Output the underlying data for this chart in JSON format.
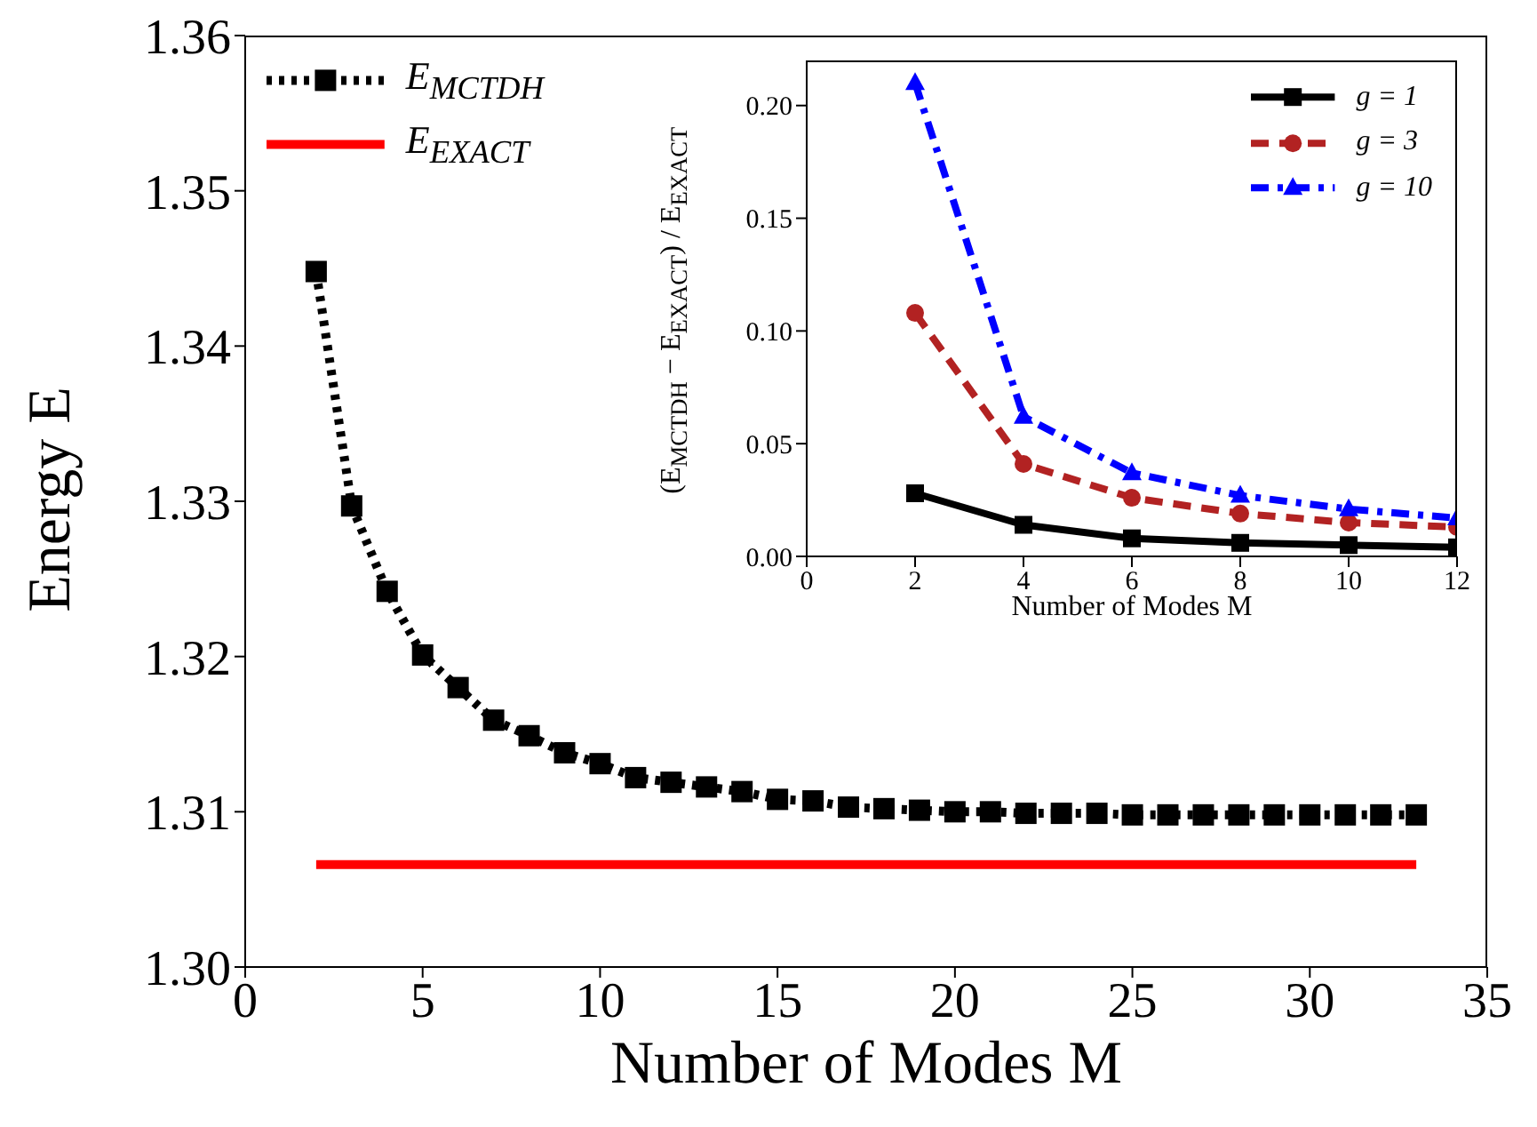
{
  "chart_data": [
    {
      "type": "line",
      "xlabel": "Number of Modes M",
      "ylabel": "Energy E",
      "xlim": [
        0,
        35
      ],
      "xticks": [
        0,
        5,
        10,
        15,
        20,
        25,
        30,
        35
      ],
      "ylim": [
        1.3,
        1.36
      ],
      "yticks": [
        {
          "value": 1.3,
          "label": "1.30"
        },
        {
          "value": 1.31,
          "label": "1.31"
        },
        {
          "value": 1.32,
          "label": "1.32"
        },
        {
          "value": 1.33,
          "label": "1.33"
        },
        {
          "value": 1.34,
          "label": "1.34"
        },
        {
          "value": 1.35,
          "label": "1.35"
        },
        {
          "value": 1.36,
          "label": "1.36"
        }
      ],
      "legend": "top left",
      "series": [
        {
          "name": "E$_{MCTDH}$",
          "color": "#000000",
          "marker": "square",
          "line_style": "dotted",
          "x": [
            2,
            3,
            4,
            5,
            6,
            7,
            8,
            9,
            10,
            11,
            12,
            13,
            14,
            15,
            16,
            17,
            18,
            19,
            20,
            21,
            22,
            23,
            24,
            25,
            26,
            27,
            28,
            29,
            30,
            31,
            32,
            33
          ],
          "values": [
            1.3448,
            1.3297,
            1.3242,
            1.3201,
            1.318,
            1.3159,
            1.3149,
            1.3138,
            1.3131,
            1.3122,
            1.3119,
            1.3116,
            1.3113,
            1.3108,
            1.3107,
            1.3103,
            1.3102,
            1.3101,
            1.31,
            1.31,
            1.3099,
            1.3099,
            1.3099,
            1.3098,
            1.3098,
            1.3098,
            1.3098,
            1.3098,
            1.3098,
            1.3098,
            1.3098,
            1.3098
          ]
        },
        {
          "name": "E$_{EXACT}$",
          "color": "#ff0000",
          "marker": "none",
          "line_style": "solid",
          "x": [
            2,
            33
          ],
          "values": [
            1.3066,
            1.3066
          ]
        }
      ]
    },
    {
      "type": "line",
      "xlabel": "Number of Modes M",
      "ylabel": "(E$_{MCTDH}$ − E$_{EXACT}$) / E$_{EXACT}$",
      "xlim": [
        0,
        12
      ],
      "xticks": [
        0,
        2,
        4,
        6,
        8,
        10,
        12
      ],
      "ylim": [
        0,
        0.22
      ],
      "yticks": [
        {
          "value": 0,
          "label": "0.00"
        },
        {
          "value": 0.05,
          "label": "0.05"
        },
        {
          "value": 0.1,
          "label": "0.10"
        },
        {
          "value": 0.15,
          "label": "0.15"
        },
        {
          "value": 0.2,
          "label": "0.20"
        }
      ],
      "legend": "top right",
      "x": [
        2,
        4,
        6,
        8,
        10,
        12
      ],
      "series": [
        {
          "name": "g = 1",
          "color": "#000000",
          "marker": "square",
          "line_style": "solid",
          "values": [
            0.028,
            0.014,
            0.008,
            0.006,
            0.005,
            0.004
          ]
        },
        {
          "name": "g = 3",
          "color": "#b22222",
          "marker": "circle",
          "line_style": "dashed",
          "values": [
            0.108,
            0.041,
            0.026,
            0.019,
            0.015,
            0.013
          ]
        },
        {
          "name": "g = 10",
          "color": "#0000ff",
          "marker": "triangle",
          "line_style": "dashdot",
          "values": [
            0.21,
            0.062,
            0.037,
            0.027,
            0.021,
            0.017
          ]
        }
      ]
    }
  ]
}
